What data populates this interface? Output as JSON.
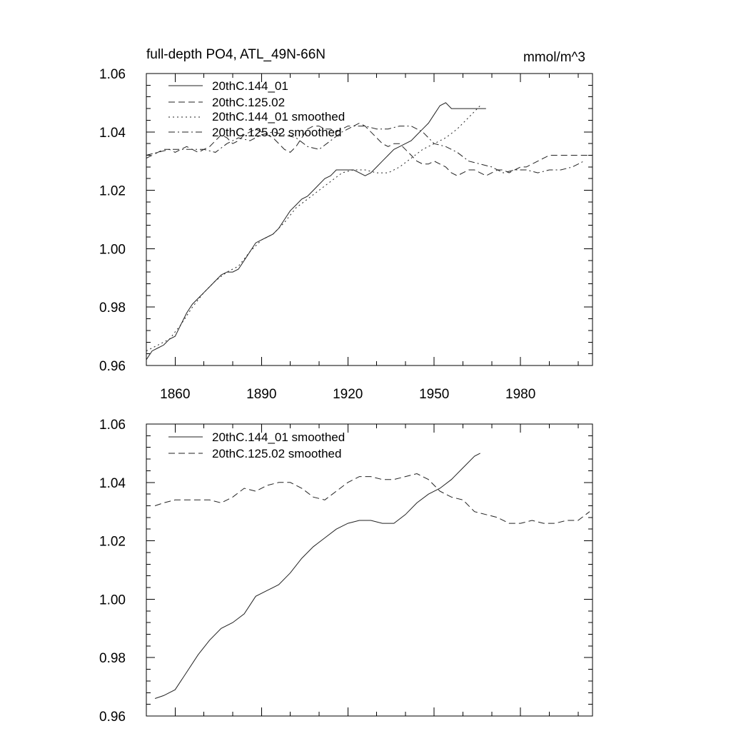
{
  "chart_data": [
    {
      "type": "line",
      "title": "full-depth PO4, ATL_49N-66N",
      "units": "mmol/m^3",
      "xlim": [
        1850,
        2005
      ],
      "ylim": [
        0.96,
        1.06
      ],
      "xticks": [
        1860,
        1890,
        1920,
        1950,
        1980
      ],
      "yticks": [
        0.96,
        0.98,
        1.0,
        1.02,
        1.04,
        1.06
      ],
      "xtick_labels": [
        "1860",
        "1890",
        "1920",
        "1950",
        "1980"
      ],
      "ytick_labels": [
        "0.96",
        "0.98",
        "1.00",
        "1.02",
        "1.04",
        "1.06"
      ],
      "legend_position": "top-left",
      "series": [
        {
          "name": "20thC.144_01",
          "style": "solid",
          "x": [
            1850,
            1852,
            1854,
            1856,
            1858,
            1860,
            1862,
            1864,
            1866,
            1868,
            1870,
            1872,
            1874,
            1876,
            1878,
            1880,
            1882,
            1884,
            1886,
            1888,
            1890,
            1892,
            1894,
            1896,
            1898,
            1900,
            1902,
            1904,
            1906,
            1908,
            1910,
            1912,
            1914,
            1916,
            1918,
            1920,
            1922,
            1924,
            1926,
            1928,
            1930,
            1932,
            1934,
            1936,
            1938,
            1940,
            1942,
            1944,
            1946,
            1948,
            1950,
            1952,
            1954,
            1956,
            1958,
            1960,
            1962,
            1964,
            1966,
            1968
          ],
          "values": [
            0.962,
            0.965,
            0.966,
            0.967,
            0.969,
            0.97,
            0.974,
            0.978,
            0.981,
            0.983,
            0.985,
            0.987,
            0.989,
            0.991,
            0.992,
            0.992,
            0.993,
            0.996,
            0.999,
            1.002,
            1.003,
            1.004,
            1.005,
            1.007,
            1.01,
            1.013,
            1.015,
            1.017,
            1.018,
            1.02,
            1.022,
            1.024,
            1.025,
            1.027,
            1.027,
            1.027,
            1.027,
            1.026,
            1.025,
            1.026,
            1.028,
            1.03,
            1.032,
            1.034,
            1.035,
            1.036,
            1.037,
            1.039,
            1.041,
            1.043,
            1.046,
            1.049,
            1.05,
            1.048,
            1.048,
            1.048,
            1.048,
            1.048,
            1.048,
            1.048
          ]
        },
        {
          "name": "20thC.125.02",
          "style": "dash",
          "x": [
            1850,
            1852,
            1854,
            1856,
            1858,
            1860,
            1862,
            1864,
            1866,
            1868,
            1870,
            1872,
            1874,
            1876,
            1878,
            1880,
            1882,
            1884,
            1886,
            1888,
            1890,
            1892,
            1894,
            1896,
            1898,
            1900,
            1902,
            1904,
            1906,
            1908,
            1910,
            1912,
            1914,
            1916,
            1918,
            1920,
            1922,
            1924,
            1926,
            1928,
            1930,
            1932,
            1934,
            1936,
            1938,
            1940,
            1942,
            1944,
            1946,
            1948,
            1950,
            1952,
            1954,
            1956,
            1958,
            1960,
            1962,
            1964,
            1966,
            1968,
            1970,
            1972,
            1974,
            1976,
            1978,
            1980,
            1982,
            1984,
            1986,
            1988,
            1990,
            1992,
            1994,
            1996,
            1998,
            2000,
            2002,
            2004
          ],
          "values": [
            1.031,
            1.032,
            1.033,
            1.034,
            1.034,
            1.033,
            1.034,
            1.035,
            1.034,
            1.033,
            1.034,
            1.035,
            1.037,
            1.039,
            1.038,
            1.036,
            1.037,
            1.039,
            1.04,
            1.041,
            1.04,
            1.039,
            1.038,
            1.036,
            1.034,
            1.033,
            1.035,
            1.038,
            1.041,
            1.042,
            1.042,
            1.041,
            1.041,
            1.04,
            1.041,
            1.042,
            1.042,
            1.043,
            1.042,
            1.04,
            1.038,
            1.036,
            1.035,
            1.036,
            1.036,
            1.034,
            1.032,
            1.03,
            1.029,
            1.029,
            1.03,
            1.029,
            1.028,
            1.026,
            1.025,
            1.026,
            1.027,
            1.027,
            1.026,
            1.025,
            1.026,
            1.027,
            1.027,
            1.026,
            1.027,
            1.028,
            1.028,
            1.029,
            1.03,
            1.031,
            1.032,
            1.032,
            1.032,
            1.032,
            1.032,
            1.032,
            1.032,
            1.032
          ]
        },
        {
          "name": "20thC.144_01 smoothed",
          "style": "dot",
          "x": [
            1850,
            1854,
            1858,
            1862,
            1866,
            1870,
            1874,
            1878,
            1882,
            1886,
            1890,
            1894,
            1898,
            1902,
            1906,
            1910,
            1914,
            1918,
            1922,
            1926,
            1930,
            1934,
            1938,
            1942,
            1946,
            1950,
            1954,
            1958,
            1962,
            1966
          ],
          "values": [
            0.965,
            0.967,
            0.969,
            0.974,
            0.98,
            0.985,
            0.989,
            0.992,
            0.994,
            0.999,
            1.003,
            1.005,
            1.009,
            1.014,
            1.017,
            1.02,
            1.023,
            1.026,
            1.027,
            1.027,
            1.026,
            1.026,
            1.028,
            1.031,
            1.034,
            1.036,
            1.038,
            1.041,
            1.045,
            1.049
          ]
        },
        {
          "name": "20thC.125.02 smoothed",
          "style": "dashdot",
          "x": [
            1850,
            1854,
            1858,
            1862,
            1866,
            1870,
            1874,
            1878,
            1882,
            1886,
            1890,
            1894,
            1898,
            1902,
            1906,
            1910,
            1914,
            1918,
            1922,
            1926,
            1930,
            1934,
            1938,
            1942,
            1946,
            1950,
            1954,
            1958,
            1962,
            1966,
            1970,
            1974,
            1978,
            1982,
            1986,
            1990,
            1994,
            1998,
            2002
          ],
          "values": [
            1.032,
            1.033,
            1.034,
            1.034,
            1.034,
            1.034,
            1.033,
            1.036,
            1.038,
            1.037,
            1.039,
            1.04,
            1.039,
            1.038,
            1.035,
            1.034,
            1.037,
            1.04,
            1.042,
            1.042,
            1.041,
            1.041,
            1.042,
            1.042,
            1.04,
            1.036,
            1.035,
            1.033,
            1.03,
            1.029,
            1.028,
            1.026,
            1.027,
            1.027,
            1.026,
            1.027,
            1.027,
            1.028,
            1.03
          ]
        }
      ]
    },
    {
      "type": "line",
      "title": "",
      "xlim": [
        1850,
        2005
      ],
      "ylim": [
        0.96,
        1.06
      ],
      "xticks": [
        1860,
        1890,
        1920,
        1950,
        1980
      ],
      "yticks": [
        0.96,
        0.98,
        1.0,
        1.02,
        1.04,
        1.06
      ],
      "ytick_labels": [
        "0.96",
        "0.98",
        "1.00",
        "1.02",
        "1.04",
        "1.06"
      ],
      "legend_position": "top-left",
      "series": [
        {
          "name": "20thC.144_01 smoothed",
          "style": "solid",
          "x": [
            1853,
            1856,
            1860,
            1864,
            1868,
            1872,
            1876,
            1880,
            1884,
            1888,
            1892,
            1896,
            1900,
            1904,
            1908,
            1912,
            1916,
            1920,
            1924,
            1928,
            1932,
            1936,
            1940,
            1944,
            1948,
            1952,
            1956,
            1960,
            1964,
            1966
          ],
          "values": [
            0.966,
            0.967,
            0.969,
            0.975,
            0.981,
            0.986,
            0.99,
            0.992,
            0.995,
            1.001,
            1.003,
            1.005,
            1.009,
            1.014,
            1.018,
            1.021,
            1.024,
            1.026,
            1.027,
            1.027,
            1.026,
            1.026,
            1.029,
            1.033,
            1.036,
            1.038,
            1.041,
            1.045,
            1.049,
            1.05
          ]
        },
        {
          "name": "20thC.125.02 smoothed",
          "style": "dash",
          "x": [
            1853,
            1856,
            1860,
            1864,
            1868,
            1872,
            1876,
            1880,
            1884,
            1888,
            1892,
            1896,
            1900,
            1904,
            1908,
            1912,
            1916,
            1920,
            1924,
            1928,
            1932,
            1936,
            1940,
            1944,
            1948,
            1952,
            1956,
            1960,
            1964,
            1968,
            1972,
            1976,
            1980,
            1984,
            1988,
            1992,
            1996,
            2000,
            2004
          ],
          "values": [
            1.032,
            1.033,
            1.034,
            1.034,
            1.034,
            1.034,
            1.033,
            1.035,
            1.038,
            1.037,
            1.039,
            1.04,
            1.04,
            1.038,
            1.035,
            1.034,
            1.037,
            1.04,
            1.042,
            1.042,
            1.041,
            1.041,
            1.042,
            1.043,
            1.041,
            1.037,
            1.035,
            1.034,
            1.03,
            1.029,
            1.028,
            1.026,
            1.026,
            1.027,
            1.026,
            1.026,
            1.027,
            1.027,
            1.03
          ]
        }
      ]
    }
  ]
}
